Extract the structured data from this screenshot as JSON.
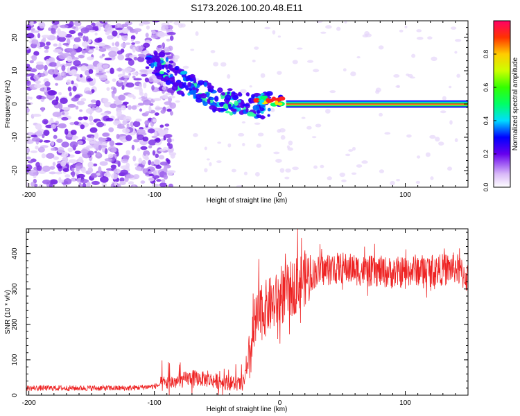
{
  "title": "S173.2026.100.20.48.E11",
  "chart_data": [
    {
      "type": "heatmap",
      "xlabel": "Height of straight line (km)",
      "ylabel": "Frequency (Hz)",
      "xlim": [
        -202,
        150
      ],
      "ylim": [
        -25,
        25
      ],
      "xticks": [
        -200,
        -100,
        0,
        100
      ],
      "yticks": [
        -20,
        -10,
        0,
        10,
        20
      ],
      "colorbar": {
        "label": "Normalized spectral amplitude",
        "range": [
          0,
          1
        ],
        "ticks": [
          0.0,
          0.2,
          0.4,
          0.6,
          0.8
        ],
        "tick_labels": [
          "0.0",
          "0.2",
          "0.4",
          "0.6",
          "0.8"
        ]
      },
      "features": {
        "noise_region_x": [
          -202,
          -95
        ],
        "chirp_start": {
          "x": -105,
          "f": 14
        },
        "chirp_end": {
          "x": -20,
          "f": 0
        },
        "steady_tone": {
          "x_range": [
            5,
            150
          ],
          "f": 0,
          "amplitude": 1.0
        }
      }
    },
    {
      "type": "line",
      "xlabel": "Height of straight line (km)",
      "ylabel": "SNR (10 * v/v)",
      "xlim": [
        -202,
        150
      ],
      "ylim": [
        0,
        470
      ],
      "xticks": [
        -200,
        -100,
        0,
        100
      ],
      "yticks": [
        0,
        100,
        200,
        300,
        400
      ],
      "series": [
        {
          "name": "SNR",
          "color": "#ee2222",
          "x": [
            -202,
            -180,
            -160,
            -140,
            -120,
            -100,
            -90,
            -80,
            -70,
            -60,
            -50,
            -40,
            -30,
            -25,
            -20,
            -15,
            -10,
            -5,
            0,
            5,
            10,
            15,
            20,
            25,
            30,
            40,
            50,
            60,
            70,
            80,
            90,
            100,
            110,
            120,
            130,
            140,
            150
          ],
          "values": [
            20,
            20,
            20,
            20,
            20,
            25,
            35,
            40,
            50,
            45,
            40,
            35,
            30,
            80,
            200,
            230,
            250,
            260,
            270,
            290,
            300,
            320,
            330,
            340,
            350,
            355,
            360,
            355,
            350,
            350,
            345,
            350,
            355,
            350,
            355,
            360,
            330
          ]
        }
      ]
    }
  ]
}
